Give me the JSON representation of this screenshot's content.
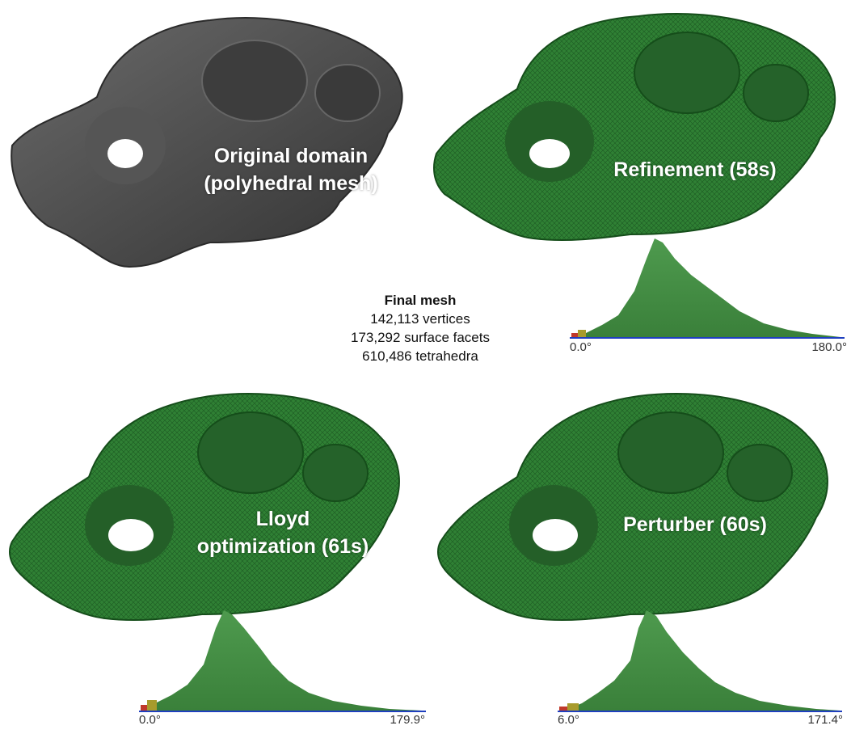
{
  "panels": {
    "original": {
      "label_lines": [
        "Original domain",
        "(polyhedral mesh)"
      ]
    },
    "refinement": {
      "label_lines": [
        "Refinement (58s)"
      ]
    },
    "lloyd": {
      "label_lines": [
        "Lloyd",
        "optimization (61s)"
      ]
    },
    "perturber": {
      "label_lines": [
        "Perturber (60s)"
      ]
    }
  },
  "final_mesh": {
    "title": "Final mesh",
    "vertices": "142,113 vertices",
    "facets": "173,292 surface facets",
    "tetrahedra": "610,486 tetrahedra"
  },
  "histograms": {
    "refinement": {
      "min_label": "0.0°",
      "max_label": "180.0°"
    },
    "lloyd": {
      "min_label": "0.0°",
      "max_label": "179.9°"
    },
    "perturber": {
      "min_label": "6.0°",
      "max_label": "171.4°"
    }
  },
  "colors": {
    "mesh_green": "#2e7d32",
    "original_gray": "#4a4a4a",
    "histogram_green": "#3f8f3f",
    "axis_blue": "#1f3fbf"
  }
}
